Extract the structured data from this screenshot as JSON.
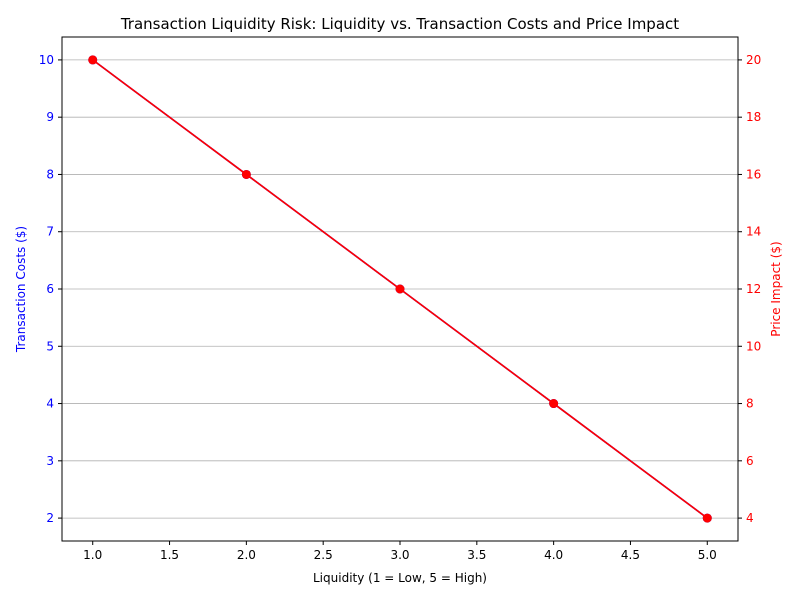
{
  "chart_data": {
    "type": "line",
    "title": "Transaction Liquidity Risk: Liquidity vs. Transaction Costs and Price Impact",
    "xlabel": "Liquidity (1 = Low, 5 = High)",
    "ylabel": "Transaction Costs ($)",
    "ylabel_right": "Price Impact ($)",
    "x": [
      1,
      2,
      3,
      4,
      5
    ],
    "xlim": [
      0.8,
      5.2
    ],
    "x_ticks": [
      1.0,
      1.5,
      2.0,
      2.5,
      3.0,
      3.5,
      4.0,
      4.5,
      5.0
    ],
    "x_tick_labels": [
      "1.0",
      "1.5",
      "2.0",
      "2.5",
      "3.0",
      "3.5",
      "4.0",
      "4.5",
      "5.0"
    ],
    "ylim": [
      1.6,
      10.4
    ],
    "y_ticks": [
      2,
      3,
      4,
      5,
      6,
      7,
      8,
      9,
      10
    ],
    "y_tick_labels": [
      "2",
      "3",
      "4",
      "5",
      "6",
      "7",
      "8",
      "9",
      "10"
    ],
    "ylim_right": [
      3.2,
      20.8
    ],
    "y_right_ticks": [
      4,
      6,
      8,
      10,
      12,
      14,
      16,
      18,
      20
    ],
    "y_right_tick_labels": [
      "4",
      "6",
      "8",
      "10",
      "12",
      "14",
      "16",
      "18",
      "20"
    ],
    "grid": "horizontal",
    "series": [
      {
        "axis": "left",
        "values": [
          10,
          8,
          6,
          4,
          2
        ],
        "color": "#0000ff",
        "marker": "circle"
      },
      {
        "axis": "right",
        "values": [
          20,
          16,
          12,
          8,
          4
        ],
        "color": "#ff0000",
        "marker": "circle"
      }
    ],
    "colors": {
      "left_axis": "#0000ff",
      "right_axis": "#ff0000",
      "grid": "#b0b0b0",
      "text": "#000000"
    }
  }
}
